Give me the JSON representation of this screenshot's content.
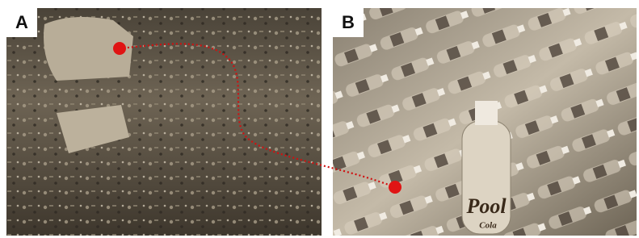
{
  "panels": [
    {
      "label": "A"
    },
    {
      "label": "B",
      "bottle_brand": "Pool",
      "bottle_subtext": "Cola"
    }
  ]
}
